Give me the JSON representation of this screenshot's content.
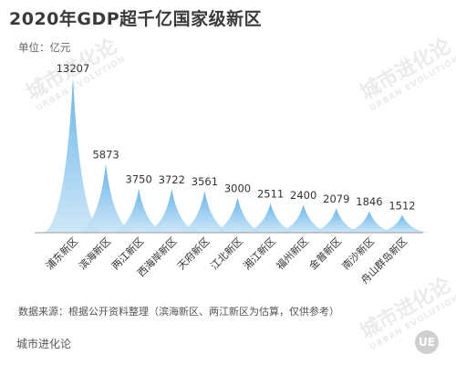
{
  "header": {
    "title": "2020年GDP超千亿国家级新区",
    "unit": "单位：亿元"
  },
  "chart_data": {
    "type": "area",
    "categories": [
      "浦东新区",
      "滨海新区",
      "两江新区",
      "西海岸新区",
      "天府新区",
      "江北新区",
      "湘江新区",
      "福州新区",
      "金普新区",
      "南沙新区",
      "舟山群岛新区"
    ],
    "values": [
      13207,
      5873,
      3750,
      3722,
      3561,
      3000,
      2511,
      2400,
      2079,
      1846,
      1512
    ],
    "title": "2020年GDP超千亿国家级新区",
    "ylabel": "单位：亿元",
    "colors": {
      "fill_top": "#5aaee8",
      "fill_bottom": "#c9e4f7"
    }
  },
  "footer": {
    "source": "数据来源：根据公开资料整理（滨海新区、两江新区为估算，仅供参考）",
    "brand": "城市进化论",
    "logo_text": "UE"
  },
  "watermark": {
    "cn": "城市进化论",
    "en": "URBAN EVOLUTION"
  }
}
